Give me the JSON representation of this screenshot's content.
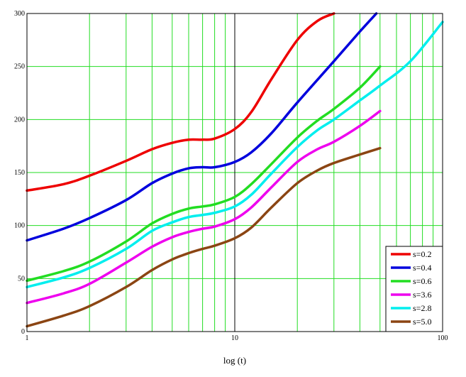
{
  "chart_data": {
    "type": "line",
    "xscale": "log",
    "xlim": [
      1,
      100
    ],
    "ylim": [
      0,
      300
    ],
    "xticks": [
      1,
      10,
      100
    ],
    "xtick_labels": [
      "1",
      "10",
      "100"
    ],
    "yticks": [
      0,
      50,
      100,
      150,
      200,
      250,
      300
    ],
    "ytick_labels": [
      "0",
      "50",
      "100",
      "150",
      "200",
      "250",
      "300"
    ],
    "xlabel": "log (t)",
    "ylabel": "",
    "title": "",
    "grid": true,
    "legend_position": "bottom-right",
    "colors": {
      "grid": "#22dd22",
      "frame": "#000000",
      "crosshair": "#000000"
    },
    "series": [
      {
        "name": "s=0.2",
        "color": "#ee0000",
        "x": [
          1,
          1.5,
          2,
          3,
          4,
          5,
          6,
          7,
          8,
          10,
          12,
          15,
          20,
          25,
          30
        ],
        "y": [
          133,
          139,
          147,
          161,
          172,
          178,
          181,
          181,
          182,
          191,
          207,
          238,
          275,
          293,
          300
        ]
      },
      {
        "name": "s=0.4",
        "color": "#0000dd",
        "x": [
          1,
          1.5,
          2,
          3,
          4,
          5,
          6,
          7,
          8,
          10,
          12,
          15,
          20,
          30,
          40,
          48
        ],
        "y": [
          86,
          97,
          107,
          124,
          140,
          149,
          154,
          155,
          155,
          160,
          169,
          187,
          216,
          255,
          283,
          300
        ]
      },
      {
        "name": "s=0.6",
        "color": "#22dd22",
        "x": [
          1,
          1.5,
          2,
          3,
          4,
          5,
          6,
          7,
          8,
          10,
          12,
          15,
          20,
          25,
          30,
          40,
          50
        ],
        "y": [
          48,
          57,
          66,
          85,
          102,
          111,
          116,
          118,
          120,
          127,
          139,
          158,
          183,
          199,
          210,
          230,
          250
        ]
      },
      {
        "name": "s=3.6",
        "color": "#ee00ee",
        "x": [
          1,
          1.5,
          2,
          3,
          4,
          5,
          6,
          7,
          8,
          10,
          12,
          15,
          20,
          25,
          30,
          40,
          50
        ],
        "y": [
          27,
          36,
          45,
          65,
          80,
          89,
          94,
          97,
          99,
          106,
          117,
          136,
          160,
          172,
          179,
          194,
          208
        ]
      },
      {
        "name": "s=2.8",
        "color": "#00eeee",
        "x": [
          1,
          1.5,
          2,
          3,
          4,
          5,
          6,
          7,
          8,
          10,
          12,
          15,
          20,
          25,
          30,
          40,
          50,
          70,
          100
        ],
        "y": [
          42,
          51,
          60,
          78,
          95,
          103,
          108,
          110,
          112,
          118,
          129,
          149,
          174,
          190,
          200,
          218,
          232,
          255,
          292
        ]
      },
      {
        "name": "s=5.0",
        "color": "#8b4513",
        "x": [
          1,
          1.5,
          2,
          3,
          4,
          5,
          6,
          7,
          8,
          10,
          12,
          15,
          20,
          25,
          30,
          40,
          50
        ],
        "y": [
          5,
          15,
          24,
          42,
          58,
          68,
          74,
          78,
          81,
          88,
          98,
          117,
          140,
          152,
          159,
          167,
          173
        ]
      }
    ]
  }
}
